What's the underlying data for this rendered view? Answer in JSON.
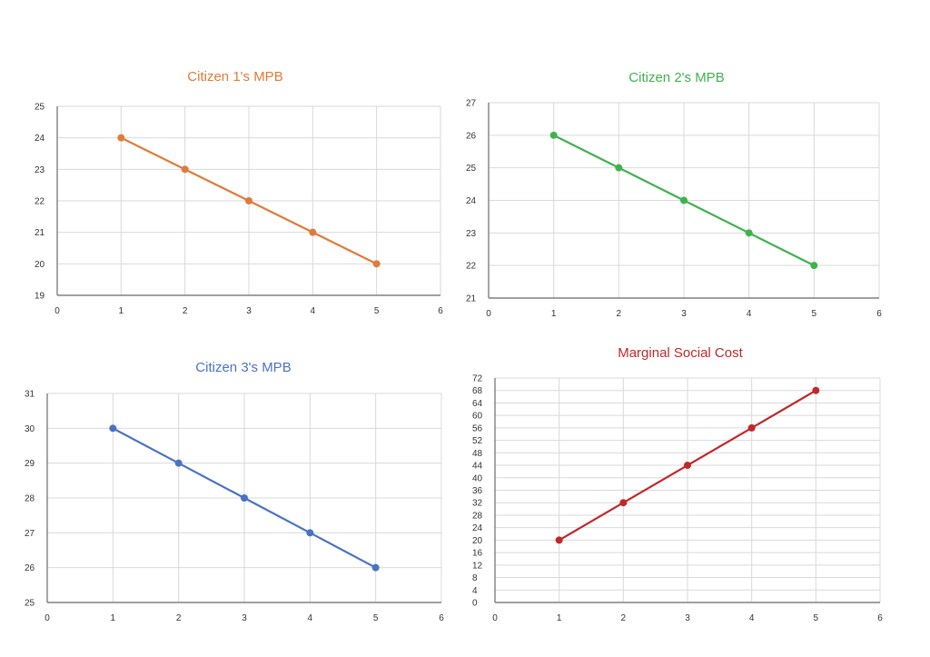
{
  "chart_data": [
    {
      "type": "line",
      "title": "Citizen 1's MPB",
      "color": "#E07B39",
      "x": [
        1,
        2,
        3,
        4,
        5
      ],
      "values": [
        24,
        23,
        22,
        21,
        20
      ],
      "xlim": [
        0,
        6
      ],
      "ylim": [
        19,
        25
      ],
      "xticks": [
        0,
        1,
        2,
        3,
        4,
        5,
        6
      ],
      "yticks": [
        19,
        20,
        21,
        22,
        23,
        24,
        25
      ],
      "grid": true,
      "legend": "none"
    },
    {
      "type": "line",
      "title": "Citizen 2's MPB",
      "color": "#3FB24F",
      "x": [
        1,
        2,
        3,
        4,
        5
      ],
      "values": [
        26,
        25,
        24,
        23,
        22
      ],
      "xlim": [
        0,
        6
      ],
      "ylim": [
        21,
        27
      ],
      "xticks": [
        0,
        1,
        2,
        3,
        4,
        5,
        6
      ],
      "yticks": [
        21,
        22,
        23,
        24,
        25,
        26,
        27
      ],
      "grid": true,
      "legend": "none"
    },
    {
      "type": "line",
      "title": "Citizen 3's MPB",
      "color": "#4A72C4",
      "x": [
        1,
        2,
        3,
        4,
        5
      ],
      "values": [
        30,
        29,
        28,
        27,
        26
      ],
      "xlim": [
        0,
        6
      ],
      "ylim": [
        25,
        31
      ],
      "xticks": [
        0,
        1,
        2,
        3,
        4,
        5,
        6
      ],
      "yticks": [
        25,
        26,
        27,
        28,
        29,
        30,
        31
      ],
      "grid": true,
      "legend": "none"
    },
    {
      "type": "line",
      "title": "Marginal Social Cost",
      "color": "#C0282A",
      "x": [
        1,
        2,
        3,
        4,
        5
      ],
      "values": [
        20,
        32,
        44,
        56,
        68
      ],
      "xlim": [
        0,
        6
      ],
      "ylim": [
        0,
        72
      ],
      "xticks": [
        0,
        1,
        2,
        3,
        4,
        5,
        6
      ],
      "yticks": [
        0,
        4,
        8,
        12,
        16,
        20,
        24,
        28,
        32,
        36,
        40,
        44,
        48,
        52,
        56,
        60,
        64,
        68,
        72
      ],
      "grid": true,
      "legend": "none"
    }
  ]
}
